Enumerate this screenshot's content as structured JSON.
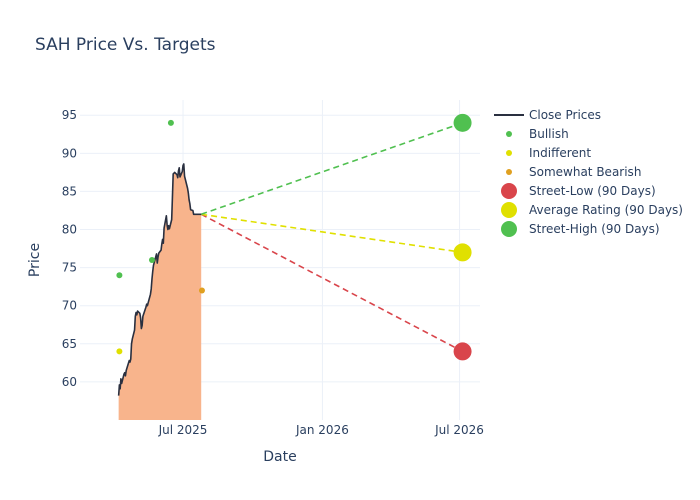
{
  "chart_data": {
    "type": "line",
    "title": "SAH Price Vs. Targets",
    "xlabel": "Date",
    "ylabel": "Price",
    "x_range": [
      "2025-02-15",
      "2026-07-28"
    ],
    "ylim": [
      55.0,
      97.0
    ],
    "x_ticks": [
      {
        "date": "2025-07-01",
        "label": "Jul 2025"
      },
      {
        "date": "2026-01-01",
        "label": "Jan 2026"
      },
      {
        "date": "2026-07-01",
        "label": "Jul 2026"
      }
    ],
    "y_ticks": [
      60,
      65,
      70,
      75,
      80,
      85,
      90,
      95
    ],
    "close_prices": {
      "name": "Close Prices",
      "color": "#2a3040",
      "fill_color": "#f8b48c",
      "dates": [
        "2025-04-07",
        "2025-04-08",
        "2025-04-09",
        "2025-04-10",
        "2025-04-11",
        "2025-04-14",
        "2025-04-15",
        "2025-04-16",
        "2025-04-17",
        "2025-04-21",
        "2025-04-22",
        "2025-04-23",
        "2025-04-24",
        "2025-04-25",
        "2025-04-28",
        "2025-04-29",
        "2025-04-30",
        "2025-05-01",
        "2025-05-02",
        "2025-05-05",
        "2025-05-06",
        "2025-05-07",
        "2025-05-08",
        "2025-05-09",
        "2025-05-12",
        "2025-05-13",
        "2025-05-14",
        "2025-05-15",
        "2025-05-16",
        "2025-05-19",
        "2025-05-20",
        "2025-05-21",
        "2025-05-22",
        "2025-05-23",
        "2025-05-27",
        "2025-05-28",
        "2025-05-29",
        "2025-05-30",
        "2025-06-02",
        "2025-06-03",
        "2025-06-04",
        "2025-06-05",
        "2025-06-06",
        "2025-06-09",
        "2025-06-10",
        "2025-06-11",
        "2025-06-12",
        "2025-06-13",
        "2025-06-16",
        "2025-06-17",
        "2025-06-18",
        "2025-06-20",
        "2025-06-23",
        "2025-06-24",
        "2025-06-25",
        "2025-06-26",
        "2025-06-27",
        "2025-06-30",
        "2025-07-01",
        "2025-07-02",
        "2025-07-03",
        "2025-07-07",
        "2025-07-08",
        "2025-07-09",
        "2025-07-10",
        "2025-07-11",
        "2025-07-14",
        "2025-07-15",
        "2025-07-16",
        "2025-07-17",
        "2025-07-18",
        "2025-07-21",
        "2025-07-22",
        "2025-07-23",
        "2025-07-24",
        "2025-07-25"
      ],
      "values": [
        58.2,
        59.6,
        59.1,
        60.4,
        59.8,
        61.0,
        61.2,
        60.8,
        61.5,
        62.8,
        62.6,
        63.0,
        65.0,
        65.6,
        66.8,
        68.6,
        69.1,
        68.8,
        69.3,
        69.0,
        68.4,
        67.0,
        67.4,
        68.6,
        69.5,
        69.8,
        70.2,
        70.0,
        70.4,
        71.5,
        72.2,
        73.5,
        74.5,
        75.3,
        76.8,
        75.6,
        76.4,
        76.9,
        77.3,
        78.1,
        78.7,
        78.2,
        80.2,
        81.8,
        80.6,
        80.0,
        80.5,
        80.1,
        81.3,
        84.2,
        87.3,
        87.5,
        87.2,
        86.8,
        87.7,
        88.1,
        86.9,
        87.6,
        88.4,
        88.6,
        87.0,
        85.4,
        84.8,
        83.9,
        83.4,
        82.6,
        82.5,
        82.0,
        82.0,
        82.0,
        82.0,
        82.0,
        82.0,
        82.0,
        82.0,
        82.0
      ]
    },
    "ratings": [
      {
        "name": "Bullish",
        "color": "#50c050",
        "points": [
          {
            "date": "2025-04-08",
            "value": 74
          },
          {
            "date": "2025-05-21",
            "value": 76
          },
          {
            "date": "2025-06-15",
            "value": 94
          }
        ]
      },
      {
        "name": "Indifferent",
        "color": "#e0e000",
        "points": [
          {
            "date": "2025-04-08",
            "value": 64
          }
        ]
      },
      {
        "name": "Somewhat Bearish",
        "color": "#e0a020",
        "points": [
          {
            "date": "2025-07-26",
            "value": 72
          }
        ]
      }
    ],
    "targets": [
      {
        "name": "Street-Low (90 Days)",
        "color": "#d9454b",
        "start": {
          "date": "2025-07-25",
          "value": 82
        },
        "end": {
          "date": "2026-07-05",
          "value": 64
        }
      },
      {
        "name": "Average Rating (90 Days)",
        "color": "#e0e000",
        "start": {
          "date": "2025-07-25",
          "value": 82
        },
        "end": {
          "date": "2026-07-05",
          "value": 77
        }
      },
      {
        "name": "Street-High (90 Days)",
        "color": "#50c050",
        "start": {
          "date": "2025-07-25",
          "value": 82
        },
        "end": {
          "date": "2026-07-05",
          "value": 94
        }
      }
    ],
    "legend": {
      "position": "top-right",
      "items": [
        "Close Prices",
        "Bullish",
        "Indifferent",
        "Somewhat Bearish",
        "Street-Low (90 Days)",
        "Average Rating (90 Days)",
        "Street-High (90 Days)"
      ]
    }
  }
}
